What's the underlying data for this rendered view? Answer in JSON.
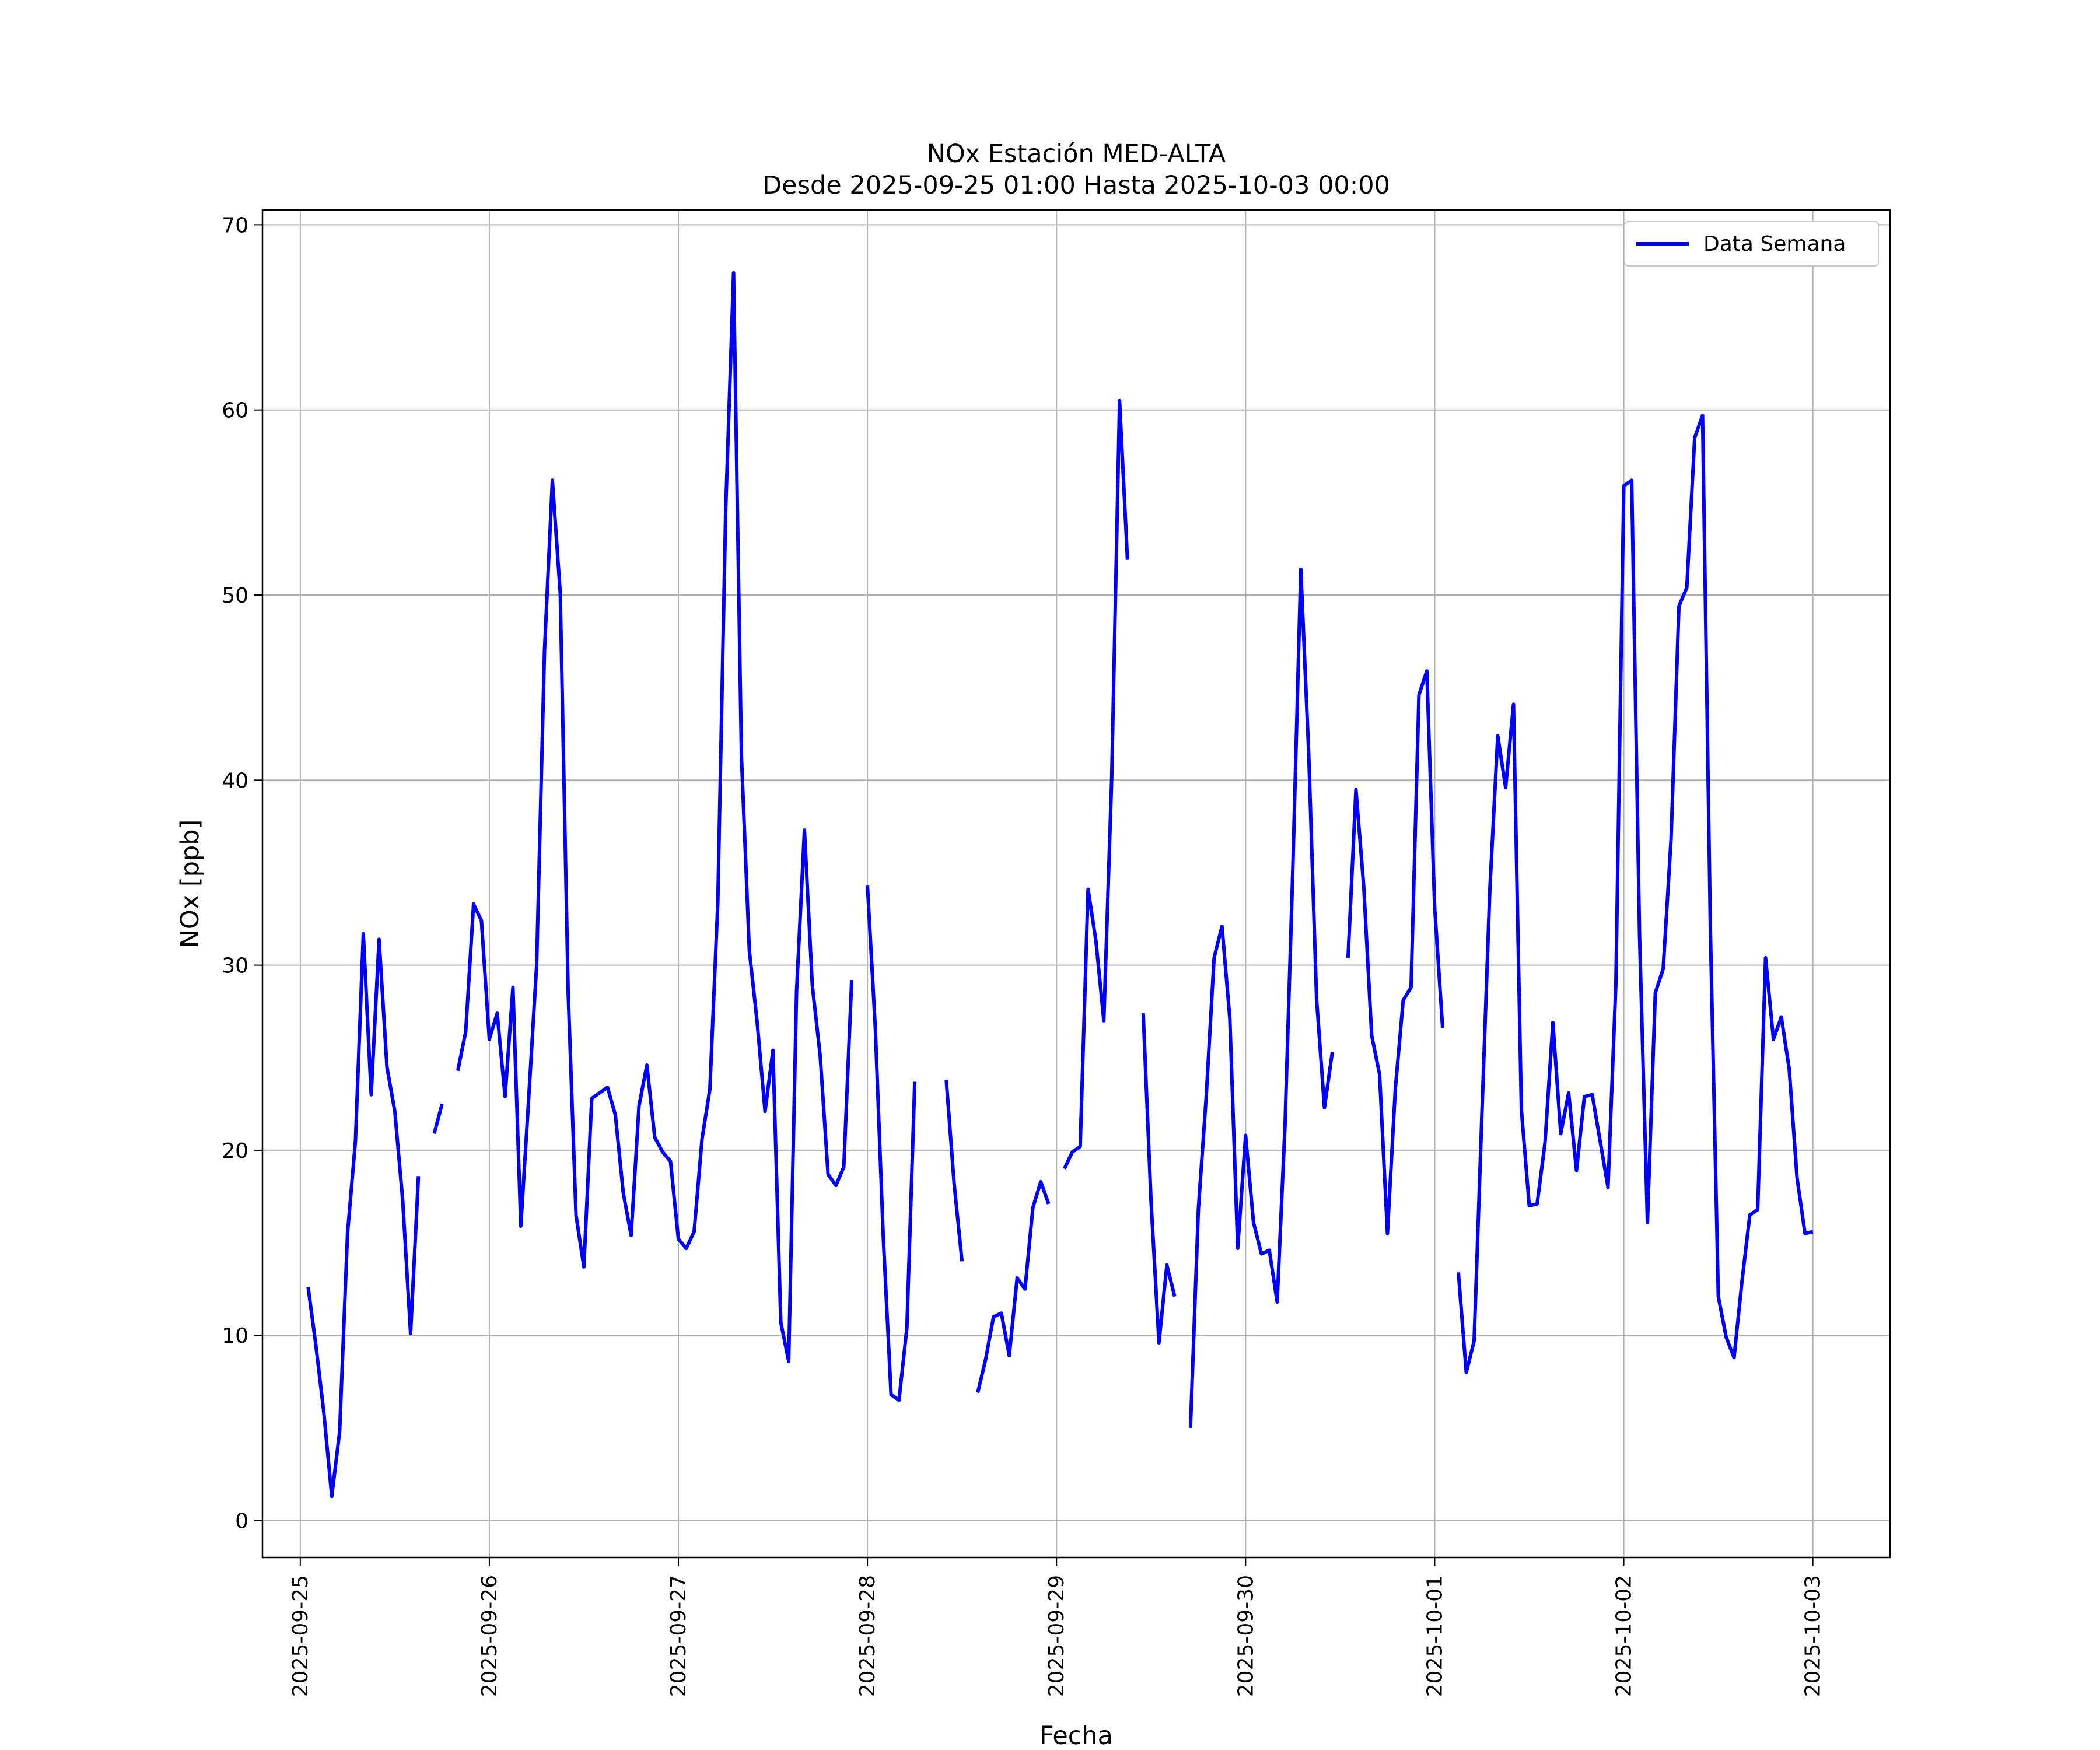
{
  "chart_data": {
    "type": "line",
    "title": "NOx Estación MED-ALTA",
    "subtitle": "Desde 2025-09-25 01:00 Hasta 2025-10-03 00:00",
    "xlabel": "Fecha",
    "ylabel": "NOx [ppb]",
    "ylim": [
      -2,
      70.8
    ],
    "xlim": [
      "2025-09-24 19:12",
      "2025-10-03 09:48"
    ],
    "grid": true,
    "legend_position": "top-right",
    "x_ticks": [
      "2025-09-25",
      "2025-09-26",
      "2025-09-27",
      "2025-09-28",
      "2025-09-29",
      "2025-09-30",
      "2025-10-01",
      "2025-10-02",
      "2025-10-03"
    ],
    "y_ticks": [
      "0",
      "10",
      "20",
      "30",
      "40",
      "50",
      "60",
      "70"
    ],
    "series": [
      {
        "name": "Data Semana",
        "color": "#0000ff",
        "points": [
          [
            "2025-09-25 01:00",
            12.6
          ],
          [
            "2025-09-25 02:00",
            9.4
          ],
          [
            "2025-09-25 03:00",
            5.8
          ],
          [
            "2025-09-25 04:00",
            1.3
          ],
          [
            "2025-09-25 05:00",
            4.8
          ],
          [
            "2025-09-25 06:00",
            15.5
          ],
          [
            "2025-09-25 07:00",
            20.5
          ],
          [
            "2025-09-25 08:00",
            31.7
          ],
          [
            "2025-09-25 09:00",
            23.0
          ],
          [
            "2025-09-25 10:00",
            31.4
          ],
          [
            "2025-09-25 11:00",
            24.5
          ],
          [
            "2025-09-25 12:00",
            22.1
          ],
          [
            "2025-09-25 13:00",
            17.3
          ],
          [
            "2025-09-25 14:00",
            10.1
          ],
          [
            "2025-09-25 15:00",
            18.6
          ],
          [
            "2025-09-25 16:00",
            null
          ],
          [
            "2025-09-25 17:00",
            20.9
          ],
          [
            "2025-09-25 18:00",
            22.5
          ],
          [
            "2025-09-25 19:00",
            null
          ],
          [
            "2025-09-25 20:00",
            24.3
          ],
          [
            "2025-09-25 21:00",
            26.4
          ],
          [
            "2025-09-25 22:00",
            33.3
          ],
          [
            "2025-09-25 23:00",
            32.4
          ],
          [
            "2025-09-26 00:00",
            26.0
          ],
          [
            "2025-09-26 01:00",
            27.4
          ],
          [
            "2025-09-26 02:00",
            22.9
          ],
          [
            "2025-09-26 03:00",
            28.8
          ],
          [
            "2025-09-26 04:00",
            15.9
          ],
          [
            "2025-09-26 05:00",
            22.8
          ],
          [
            "2025-09-26 06:00",
            30.0
          ],
          [
            "2025-09-26 07:00",
            47.0
          ],
          [
            "2025-09-26 08:00",
            56.2
          ],
          [
            "2025-09-26 09:00",
            50.1
          ],
          [
            "2025-09-26 10:00",
            28.6
          ],
          [
            "2025-09-26 11:00",
            16.5
          ],
          [
            "2025-09-26 12:00",
            13.7
          ],
          [
            "2025-09-26 13:00",
            22.8
          ],
          [
            "2025-09-26 14:00",
            23.1
          ],
          [
            "2025-09-26 15:00",
            23.4
          ],
          [
            "2025-09-26 16:00",
            21.9
          ],
          [
            "2025-09-26 17:00",
            17.7
          ],
          [
            "2025-09-26 18:00",
            15.4
          ],
          [
            "2025-09-26 19:00",
            22.4
          ],
          [
            "2025-09-26 20:00",
            24.6
          ],
          [
            "2025-09-26 21:00",
            20.7
          ],
          [
            "2025-09-26 22:00",
            19.9
          ],
          [
            "2025-09-26 23:00",
            19.4
          ],
          [
            "2025-09-27 00:00",
            15.2
          ],
          [
            "2025-09-27 01:00",
            14.7
          ],
          [
            "2025-09-27 02:00",
            15.6
          ],
          [
            "2025-09-27 03:00",
            20.6
          ],
          [
            "2025-09-27 04:00",
            23.3
          ],
          [
            "2025-09-27 05:00",
            33.4
          ],
          [
            "2025-09-27 06:00",
            54.6
          ],
          [
            "2025-09-27 07:00",
            67.4
          ],
          [
            "2025-09-27 08:00",
            41.3
          ],
          [
            "2025-09-27 09:00",
            30.8
          ],
          [
            "2025-09-27 10:00",
            26.9
          ],
          [
            "2025-09-27 11:00",
            22.1
          ],
          [
            "2025-09-27 12:00",
            25.4
          ],
          [
            "2025-09-27 13:00",
            10.7
          ],
          [
            "2025-09-27 14:00",
            8.6
          ],
          [
            "2025-09-27 15:00",
            28.6
          ],
          [
            "2025-09-27 16:00",
            37.3
          ],
          [
            "2025-09-27 17:00",
            28.9
          ],
          [
            "2025-09-27 18:00",
            25.1
          ],
          [
            "2025-09-27 19:00",
            18.7
          ],
          [
            "2025-09-27 20:00",
            18.1
          ],
          [
            "2025-09-27 21:00",
            19.1
          ],
          [
            "2025-09-27 22:00",
            29.2
          ],
          [
            "2025-09-27 23:00",
            null
          ],
          [
            "2025-09-28 00:00",
            34.3
          ],
          [
            "2025-09-28 01:00",
            26.6
          ],
          [
            "2025-09-28 02:00",
            15.4
          ],
          [
            "2025-09-28 03:00",
            6.8
          ],
          [
            "2025-09-28 04:00",
            6.5
          ],
          [
            "2025-09-28 05:00",
            10.4
          ],
          [
            "2025-09-28 06:00",
            23.7
          ],
          [
            "2025-09-28 07:00",
            null
          ],
          [
            "2025-09-28 10:00",
            23.8
          ],
          [
            "2025-09-28 11:00",
            18.2
          ],
          [
            "2025-09-28 12:00",
            14.0
          ],
          [
            "2025-09-28 13:00",
            null
          ],
          [
            "2025-09-28 14:00",
            6.9
          ],
          [
            "2025-09-28 15:00",
            8.7
          ],
          [
            "2025-09-28 16:00",
            11.0
          ],
          [
            "2025-09-28 17:00",
            11.2
          ],
          [
            "2025-09-28 18:00",
            8.9
          ],
          [
            "2025-09-28 19:00",
            13.1
          ],
          [
            "2025-09-28 20:00",
            12.5
          ],
          [
            "2025-09-28 21:00",
            16.9
          ],
          [
            "2025-09-28 22:00",
            18.3
          ],
          [
            "2025-09-28 23:00",
            17.1
          ],
          [
            "2025-09-29 00:00",
            null
          ],
          [
            "2025-09-29 01:00",
            19.0
          ],
          [
            "2025-09-29 02:00",
            19.9
          ],
          [
            "2025-09-29 03:00",
            20.2
          ],
          [
            "2025-09-29 04:00",
            34.1
          ],
          [
            "2025-09-29 05:00",
            31.3
          ],
          [
            "2025-09-29 06:00",
            27.0
          ],
          [
            "2025-09-29 07:00",
            40.1
          ],
          [
            "2025-09-29 08:00",
            60.5
          ],
          [
            "2025-09-29 09:00",
            51.9
          ],
          [
            "2025-09-29 10:00",
            null
          ],
          [
            "2025-09-29 11:00",
            27.4
          ],
          [
            "2025-09-29 12:00",
            17.2
          ],
          [
            "2025-09-29 13:00",
            9.6
          ],
          [
            "2025-09-29 14:00",
            13.8
          ],
          [
            "2025-09-29 15:00",
            12.1
          ],
          [
            "2025-09-29 16:00",
            null
          ],
          [
            "2025-09-29 17:00",
            5.0
          ],
          [
            "2025-09-29 18:00",
            16.8
          ],
          [
            "2025-09-29 19:00",
            22.9
          ],
          [
            "2025-09-29 20:00",
            30.4
          ],
          [
            "2025-09-29 21:00",
            32.1
          ],
          [
            "2025-09-29 22:00",
            27.1
          ],
          [
            "2025-09-29 23:00",
            14.7
          ],
          [
            "2025-09-30 00:00",
            20.8
          ],
          [
            "2025-09-30 01:00",
            16.1
          ],
          [
            "2025-09-30 02:00",
            14.4
          ],
          [
            "2025-09-30 03:00",
            14.6
          ],
          [
            "2025-09-30 04:00",
            11.8
          ],
          [
            "2025-09-30 05:00",
            21.4
          ],
          [
            "2025-09-30 06:00",
            35.4
          ],
          [
            "2025-09-30 07:00",
            51.4
          ],
          [
            "2025-09-30 08:00",
            41.5
          ],
          [
            "2025-09-30 09:00",
            28.2
          ],
          [
            "2025-09-30 10:00",
            22.3
          ],
          [
            "2025-09-30 11:00",
            25.3
          ],
          [
            "2025-09-30 12:00",
            null
          ],
          [
            "2025-09-30 13:00",
            30.4
          ],
          [
            "2025-09-30 14:00",
            39.5
          ],
          [
            "2025-09-30 15:00",
            34.2
          ],
          [
            "2025-09-30 16:00",
            26.2
          ],
          [
            "2025-09-30 17:00",
            24.1
          ],
          [
            "2025-09-30 18:00",
            15.5
          ],
          [
            "2025-09-30 19:00",
            23.3
          ],
          [
            "2025-09-30 20:00",
            28.1
          ],
          [
            "2025-09-30 21:00",
            28.8
          ],
          [
            "2025-09-30 22:00",
            44.6
          ],
          [
            "2025-09-30 23:00",
            45.9
          ],
          [
            "2025-10-01 00:00",
            33.1
          ],
          [
            "2025-10-01 01:00",
            26.6
          ],
          [
            "2025-10-01 02:00",
            null
          ],
          [
            "2025-10-01 03:00",
            13.4
          ],
          [
            "2025-10-01 04:00",
            8.0
          ],
          [
            "2025-10-01 05:00",
            9.7
          ],
          [
            "2025-10-01 06:00",
            22.1
          ],
          [
            "2025-10-01 07:00",
            34.1
          ],
          [
            "2025-10-01 08:00",
            42.4
          ],
          [
            "2025-10-01 09:00",
            39.6
          ],
          [
            "2025-10-01 10:00",
            44.1
          ],
          [
            "2025-10-01 11:00",
            22.2
          ],
          [
            "2025-10-01 12:00",
            17.0
          ],
          [
            "2025-10-01 13:00",
            17.1
          ],
          [
            "2025-10-01 14:00",
            20.4
          ],
          [
            "2025-10-01 15:00",
            26.9
          ],
          [
            "2025-10-01 16:00",
            20.9
          ],
          [
            "2025-10-01 17:00",
            23.1
          ],
          [
            "2025-10-01 18:00",
            18.9
          ],
          [
            "2025-10-01 19:00",
            22.9
          ],
          [
            "2025-10-01 20:00",
            23.0
          ],
          [
            "2025-10-01 21:00",
            20.5
          ],
          [
            "2025-10-01 22:00",
            18.0
          ],
          [
            "2025-10-01 23:00",
            29.0
          ],
          [
            "2025-10-02 00:00",
            55.9
          ],
          [
            "2025-10-02 01:00",
            56.2
          ],
          [
            "2025-10-02 02:00",
            31.6
          ],
          [
            "2025-10-02 03:00",
            16.1
          ],
          [
            "2025-10-02 04:00",
            28.5
          ],
          [
            "2025-10-02 05:00",
            29.8
          ],
          [
            "2025-10-02 06:00",
            36.8
          ],
          [
            "2025-10-02 07:00",
            49.4
          ],
          [
            "2025-10-02 08:00",
            50.4
          ],
          [
            "2025-10-02 09:00",
            58.5
          ],
          [
            "2025-10-02 10:00",
            59.7
          ],
          [
            "2025-10-02 11:00",
            31.8
          ],
          [
            "2025-10-02 12:00",
            12.1
          ],
          [
            "2025-10-02 13:00",
            9.9
          ],
          [
            "2025-10-02 14:00",
            8.8
          ],
          [
            "2025-10-02 15:00",
            12.9
          ],
          [
            "2025-10-02 16:00",
            16.5
          ],
          [
            "2025-10-02 17:00",
            16.8
          ],
          [
            "2025-10-02 18:00",
            30.4
          ],
          [
            "2025-10-02 19:00",
            26.0
          ],
          [
            "2025-10-02 20:00",
            27.2
          ],
          [
            "2025-10-02 21:00",
            24.4
          ],
          [
            "2025-10-02 22:00",
            18.5
          ],
          [
            "2025-10-02 23:00",
            15.5
          ],
          [
            "2025-10-03 00:00",
            15.6
          ]
        ]
      }
    ]
  }
}
